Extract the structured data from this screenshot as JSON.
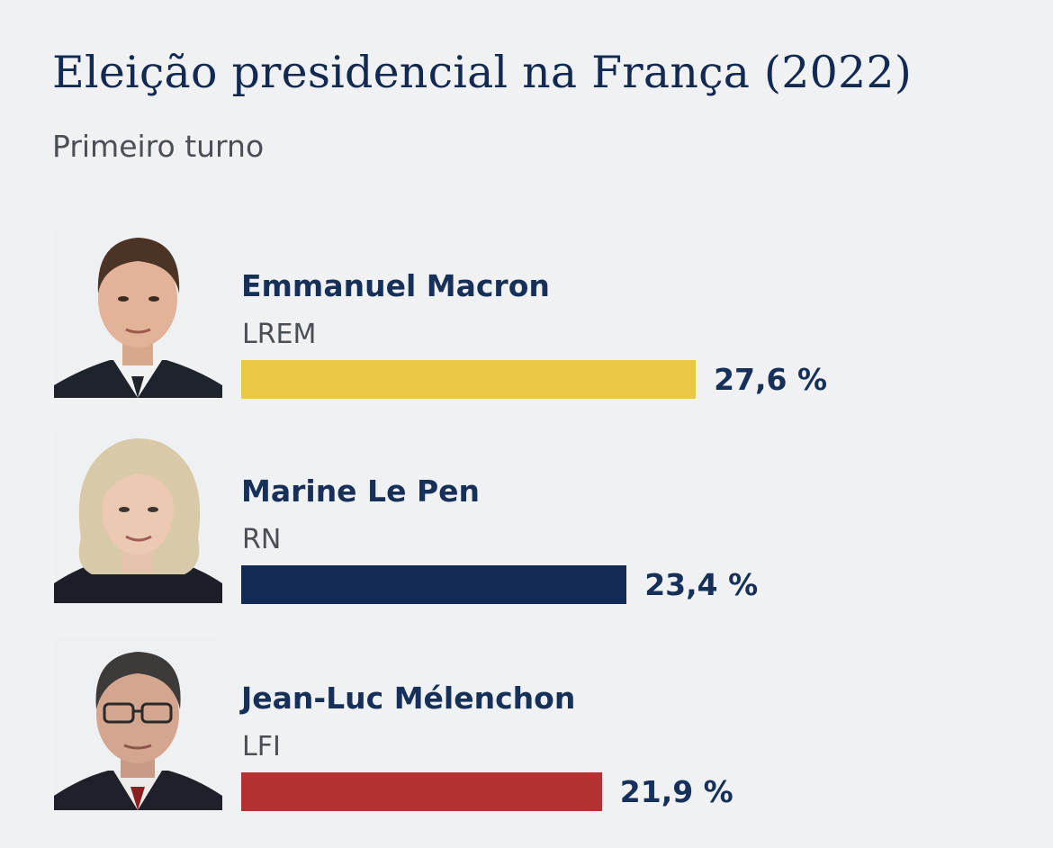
{
  "chart_data": {
    "type": "bar",
    "title": "Eleição presidencial na França (2022)",
    "subtitle": "Primeiro turno",
    "categories": [
      "Emmanuel Macron",
      "Marine Le Pen",
      "Jean-Luc Mélenchon"
    ],
    "parties": [
      "LREM",
      "RN",
      "LFI"
    ],
    "values": [
      27.6,
      23.4,
      21.9
    ],
    "value_labels": [
      "27,6 %",
      "23,4 %",
      "21,9 %"
    ],
    "colors": [
      "#e9c844",
      "#142c55",
      "#b23232"
    ],
    "xlabel": "",
    "ylabel": "",
    "xlim": [
      0,
      30
    ]
  },
  "candidates": [
    {
      "name": "Emmanuel Macron",
      "party": "LREM",
      "value": 27.6,
      "label": "27,6 %",
      "color": "#e9c844",
      "portrait": "portrait-macron"
    },
    {
      "name": "Marine Le Pen",
      "party": "RN",
      "value": 23.4,
      "label": "23,4 %",
      "color": "#142c55",
      "portrait": "portrait-le-pen"
    },
    {
      "name": "Jean-Luc Mélenchon",
      "party": "LFI",
      "value": 21.9,
      "label": "21,9 %",
      "color": "#b23232",
      "portrait": "portrait-melenchon"
    }
  ]
}
